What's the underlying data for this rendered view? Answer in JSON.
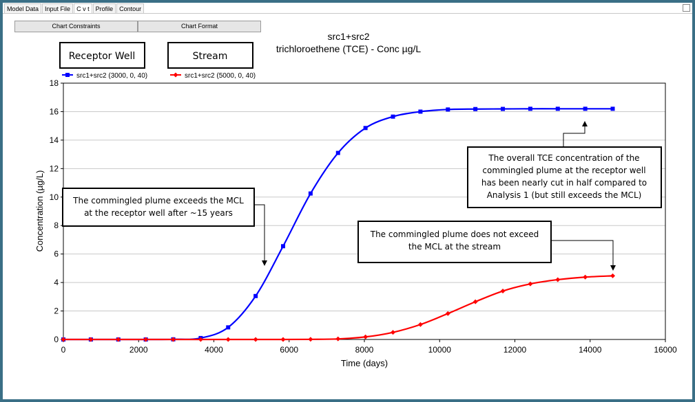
{
  "tabs": [
    {
      "label": "Model Data",
      "active": false
    },
    {
      "label": "Input File",
      "active": false
    },
    {
      "label": "C v t",
      "active": true
    },
    {
      "label": "Profile",
      "active": false
    },
    {
      "label": "Contour",
      "active": false
    }
  ],
  "toolbar": {
    "chart_constraints_label": "Chart Constraints",
    "chart_format_label": "Chart Format"
  },
  "chart_data": {
    "type": "line",
    "title": "src1+src2",
    "subtitle": "trichloroethene (TCE) - Conc µg/L",
    "xlabel": "Time (days)",
    "ylabel": "Concentration (µg/L)",
    "xlim": [
      0,
      16000
    ],
    "ylim": [
      0,
      18
    ],
    "xticks": [
      "0",
      "2000",
      "4000",
      "6000",
      "8000",
      "10000",
      "12000",
      "14000",
      "16000"
    ],
    "yticks": [
      "0",
      "2",
      "4",
      "6",
      "8",
      "10",
      "12",
      "14",
      "16",
      "18"
    ],
    "grid": "horizontal",
    "legend_position": "top-left",
    "series": [
      {
        "name": "src1+src2 (3000, 0, 40)",
        "color": "#0000ff",
        "marker": "square",
        "x": [
          0,
          730,
          1460,
          2190,
          2920,
          3650,
          4380,
          5110,
          5840,
          6570,
          7300,
          8030,
          8760,
          9490,
          10220,
          10950,
          11680,
          12410,
          13140,
          13870,
          14600
        ],
        "y": [
          0,
          0,
          0,
          0,
          0.01,
          0.1,
          0.85,
          3.05,
          6.55,
          10.25,
          13.1,
          14.85,
          15.65,
          16.0,
          16.15,
          16.18,
          16.19,
          16.2,
          16.2,
          16.2,
          16.2
        ]
      },
      {
        "name": "src1+src2 (5000, 0, 40)",
        "color": "#ff0000",
        "marker": "diamond",
        "x": [
          0,
          730,
          1460,
          2190,
          2920,
          3650,
          4380,
          5110,
          5840,
          6570,
          7300,
          8030,
          8760,
          9490,
          10220,
          10950,
          11680,
          12410,
          13140,
          13870,
          14600
        ],
        "y": [
          0,
          0,
          0,
          0,
          0,
          0,
          0,
          0,
          0,
          0.01,
          0.04,
          0.18,
          0.5,
          1.05,
          1.82,
          2.65,
          3.4,
          3.9,
          4.2,
          4.38,
          4.47
        ]
      }
    ],
    "annotations": [
      "Receptor Well",
      "Stream",
      "The commingled plume exceeds the MCL at the receptor well after ~15 years",
      "The overall TCE concentration of the commingled plume at the receptor well has been nearly cut in half compared to Analysis 1 (but still exceeds the MCL)",
      "The commingled plume does not exceed the MCL at the stream"
    ]
  },
  "callouts": {
    "receptor_well": "Receptor Well",
    "stream": "Stream",
    "exceeds": [
      "The commingled plume exceeds the MCL",
      "at the receptor well after ~15 years"
    ],
    "cut_half": [
      "The overall TCE concentration of the",
      "commingled plume at the receptor well",
      "has been nearly cut in half compared to",
      "Analysis 1 (but still exceeds the MCL)"
    ],
    "not_exceed": [
      "The commingled plume does not exceed",
      "the MCL at the stream"
    ]
  }
}
